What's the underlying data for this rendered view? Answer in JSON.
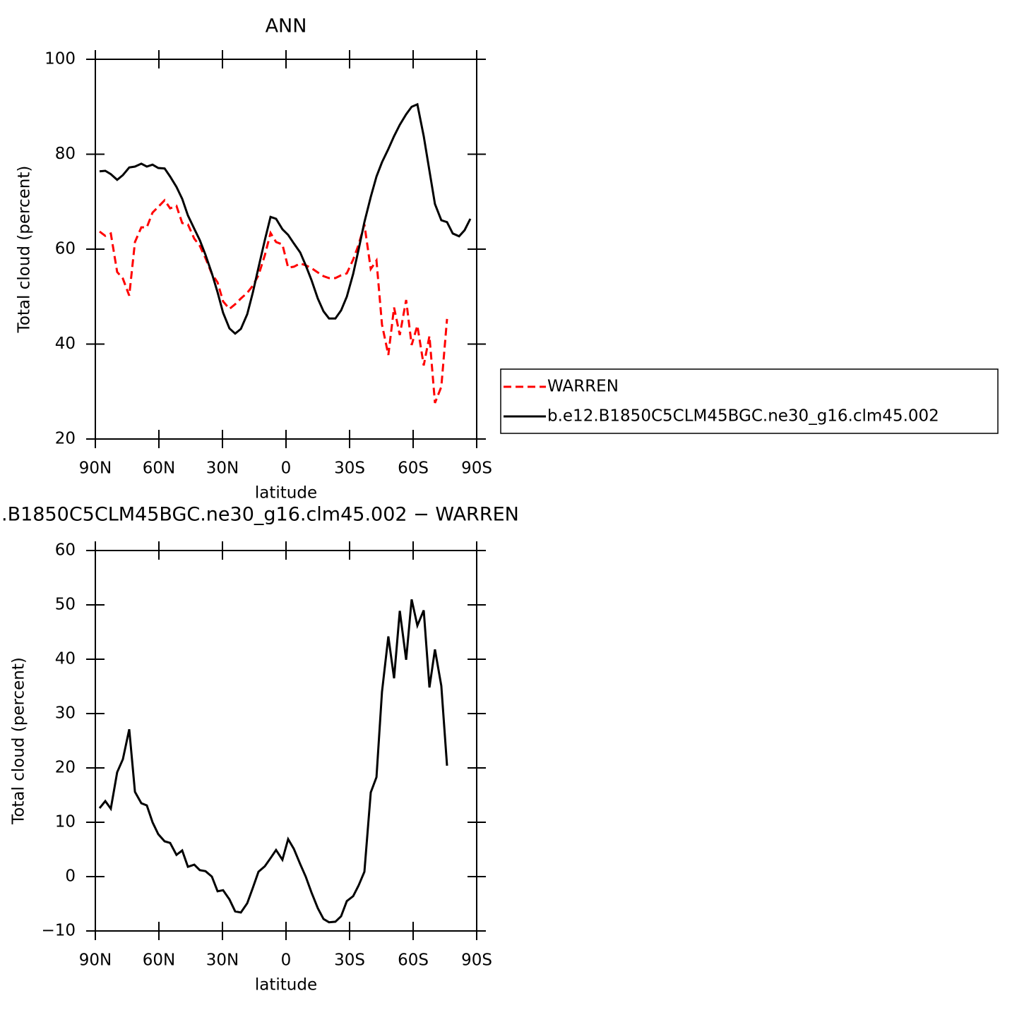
{
  "chart_data": [
    {
      "type": "line",
      "title": "ANN",
      "xlabel": "latitude",
      "ylabel": "Total cloud (percent)",
      "x": [
        88,
        85.3,
        82.7,
        79.7,
        77,
        74,
        71.3,
        68.3,
        65.7,
        63,
        60.3,
        57.3,
        54.7,
        51.7,
        49,
        46.3,
        43.3,
        40.7,
        38,
        35,
        32.3,
        29.7,
        26.7,
        24,
        21.3,
        18.3,
        15.7,
        13,
        10,
        7.3,
        4.7,
        1.7,
        -1,
        -3.7,
        -6.7,
        -9.3,
        -12,
        -15,
        -17.7,
        -20.3,
        -23.3,
        -26,
        -28.7,
        -31.7,
        -34.3,
        -37,
        -40,
        -42.7,
        -45.3,
        -48.3,
        -51,
        -53.7,
        -56.7,
        -59.3,
        -62,
        -65,
        -67.7,
        -70.3,
        -73.3,
        -76,
        -78.7,
        -81.7,
        -84.3,
        -87
      ],
      "xlim": [
        90,
        -90
      ],
      "xticks": [
        {
          "value": 90,
          "label": "90N"
        },
        {
          "value": 60,
          "label": "60N"
        },
        {
          "value": 30,
          "label": "30N"
        },
        0,
        {
          "value": -30,
          "label": "30S"
        },
        {
          "value": -60,
          "label": "60S"
        },
        {
          "value": -90,
          "label": "90S"
        }
      ],
      "ylim": [
        20,
        100
      ],
      "yticks": [
        20,
        40,
        60,
        80,
        100
      ],
      "legend": "right",
      "series": [
        {
          "name": "WARREN",
          "color": "#ff0000",
          "linestyle": "dashed",
          "values": [
            63.7,
            62.8,
            63.3,
            55.2,
            53.8,
            50.2,
            61.5,
            64.6,
            64.6,
            67.7,
            68.9,
            70.3,
            68.6,
            69.1,
            65.5,
            65.2,
            62.2,
            60.7,
            58.1,
            54.8,
            53.0,
            49.0,
            47.4,
            48.4,
            49.6,
            50.8,
            52.3,
            54.5,
            58.7,
            63.4,
            61.5,
            61.0,
            56.1,
            56.3,
            57.0,
            56.6,
            56.0,
            55.1,
            54.3,
            53.9,
            53.9,
            54.5,
            54.9,
            57.8,
            61.0,
            65.2,
            55.8,
            57.6,
            44.1,
            37.7,
            47.7,
            41.9,
            49.3,
            39.8,
            43.9,
            35.5,
            41.7,
            27.6,
            31.0,
            45.3,
            null,
            null,
            null,
            null
          ]
        },
        {
          "name": "b.e12.B1850C5CLM45BGC.ne30_g16.clm45.002",
          "color": "#000000",
          "linestyle": "solid",
          "values": [
            76.4,
            76.5,
            75.8,
            74.6,
            75.6,
            77.2,
            77.4,
            78.0,
            77.4,
            77.8,
            77.1,
            77.0,
            75.3,
            73.1,
            70.6,
            67.1,
            64.3,
            61.9,
            58.8,
            54.9,
            50.9,
            46.6,
            43.3,
            42.2,
            43.2,
            46.3,
            50.8,
            56.1,
            61.9,
            66.8,
            66.4,
            64.2,
            63.0,
            61.2,
            59.3,
            56.6,
            53.5,
            49.6,
            46.9,
            45.4,
            45.4,
            47.1,
            50.0,
            54.8,
            60.0,
            65.7,
            71.0,
            75.3,
            78.3,
            81.1,
            83.8,
            86.2,
            88.4,
            90.0,
            90.5,
            83.8,
            76.5,
            69.5,
            66.1,
            65.7,
            63.3,
            62.7,
            64.0,
            66.4
          ]
        }
      ]
    },
    {
      "type": "line",
      "title": ".B1850C5CLM45BGC.ne30_g16.clm45.002 − WARREN",
      "xlabel": "latitude",
      "ylabel": "Total cloud (percent)",
      "x": [
        88,
        85.3,
        82.7,
        79.7,
        77,
        74,
        71.3,
        68.3,
        65.7,
        63,
        60.3,
        57.3,
        54.7,
        51.7,
        49,
        46.3,
        43.3,
        40.7,
        38,
        35,
        32.3,
        29.7,
        26.7,
        24,
        21.3,
        18.3,
        15.7,
        13,
        10,
        7.3,
        4.7,
        1.7,
        -1,
        -3.7,
        -6.7,
        -9.3,
        -12,
        -15,
        -17.7,
        -20.3,
        -23.3,
        -26,
        -28.7,
        -31.7,
        -34.3,
        -37,
        -40,
        -42.7,
        -45.3,
        -48.3,
        -51,
        -53.7,
        -56.7,
        -59.3,
        -62,
        -65,
        -67.7,
        -70.3,
        -73.3,
        -76
      ],
      "xlim": [
        90,
        -90
      ],
      "xticks": [
        {
          "value": 90,
          "label": "90N"
        },
        {
          "value": 60,
          "label": "60N"
        },
        {
          "value": 30,
          "label": "30N"
        },
        0,
        {
          "value": -30,
          "label": "30S"
        },
        {
          "value": -60,
          "label": "60S"
        },
        {
          "value": -90,
          "label": "90S"
        }
      ],
      "ylim": [
        -10,
        60
      ],
      "yticks": [
        {
          "value": -10,
          "label": "−10"
        },
        0,
        10,
        20,
        30,
        40,
        50,
        60
      ],
      "series": [
        {
          "color": "#000000",
          "linestyle": "solid",
          "values": [
            12.6,
            13.9,
            12.5,
            19.2,
            21.6,
            27.1,
            15.6,
            13.5,
            13.1,
            10.0,
            7.8,
            6.5,
            6.2,
            4.0,
            4.8,
            1.8,
            2.2,
            1.2,
            1.0,
            0.0,
            -2.7,
            -2.5,
            -4.2,
            -6.4,
            -6.6,
            -4.9,
            -2.1,
            0.9,
            1.9,
            3.4,
            4.9,
            3.1,
            6.9,
            5.1,
            2.3,
            0.0,
            -2.9,
            -5.8,
            -7.8,
            -8.4,
            -8.3,
            -7.3,
            -4.5,
            -3.6,
            -1.6,
            0.9,
            15.5,
            18.3,
            34.0,
            44.2,
            36.5,
            48.9,
            39.9,
            51.0,
            46.2,
            49.0,
            34.8,
            41.8,
            35.1,
            20.4
          ]
        }
      ]
    }
  ]
}
